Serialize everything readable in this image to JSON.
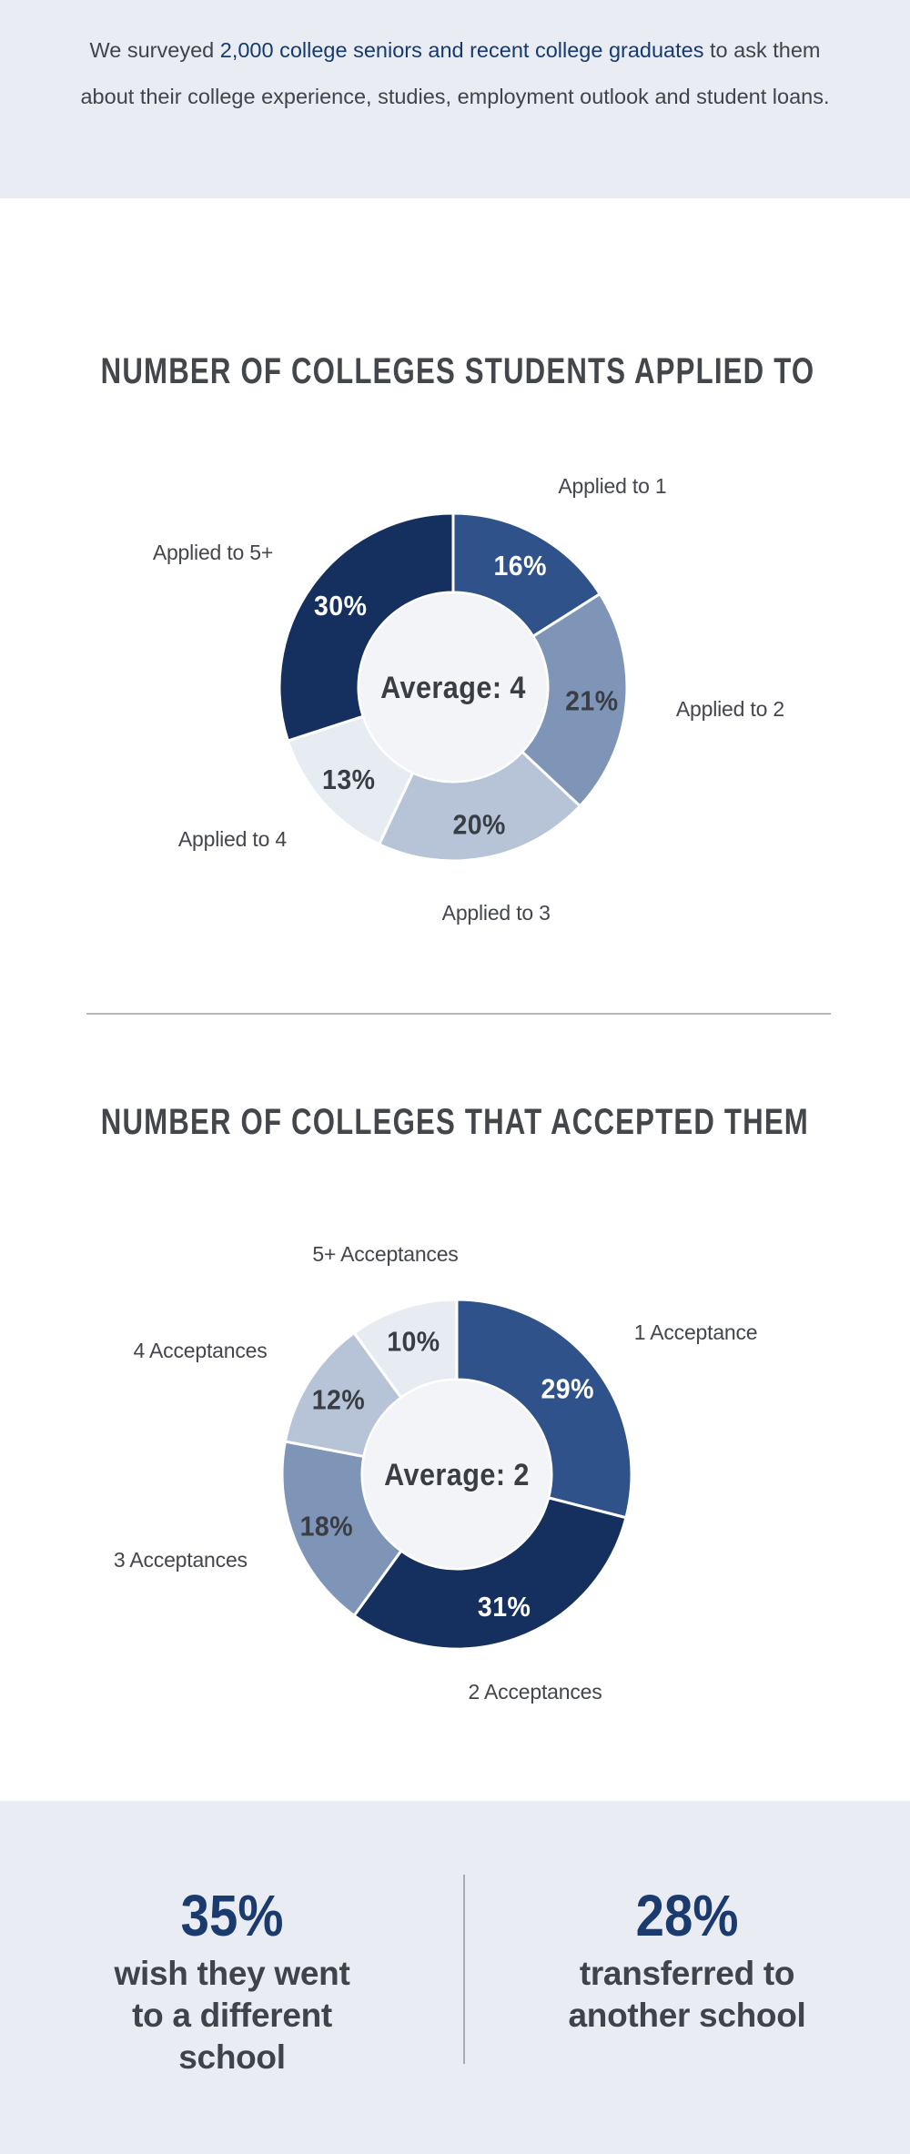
{
  "intro": {
    "prefix": "We surveyed ",
    "highlight": "2,000 college seniors and recent college graduates",
    "suffix": " to ask them about their college experience, studies, employment outlook and student loans."
  },
  "colors": {
    "navy_dark": "#15305e",
    "blue_medium": "#2f528b",
    "blue_steel": "#7e95b8",
    "blue_light": "#b7c4d8",
    "blue_faint": "#e7ebf2",
    "donut_center_fill": "#f3f4f7",
    "text_dark": "#3a3e44",
    "accent_navy": "#1b3a6e",
    "banner_bg": "#e9edf3",
    "section_bg": "#e9ecf2"
  },
  "chart_data": [
    {
      "type": "pie",
      "subtype": "donut",
      "title": "NUMBER OF COLLEGES STUDENTS APPLIED TO",
      "center_label": "Average: 4",
      "unit": "%",
      "start_angle": "top",
      "direction": "clockwise",
      "labels_position": "outside",
      "segments": [
        {
          "label": "Applied to 1",
          "value": 16,
          "color": "#2f528b",
          "text_color": "#ffffff"
        },
        {
          "label": "Applied to 2",
          "value": 21,
          "color": "#7e95b8",
          "text_color": "#3a3e44"
        },
        {
          "label": "Applied to 3",
          "value": 20,
          "color": "#b7c4d8",
          "text_color": "#3a3e44"
        },
        {
          "label": "Applied to 4",
          "value": 13,
          "color": "#e7ebf2",
          "text_color": "#3a3e44"
        },
        {
          "label": "Applied to 5+",
          "value": 30,
          "color": "#15305e",
          "text_color": "#ffffff"
        }
      ]
    },
    {
      "type": "pie",
      "subtype": "donut",
      "title": "NUMBER OF COLLEGES THAT ACCEPTED THEM",
      "center_label": "Average: 2",
      "unit": "%",
      "start_angle": "top",
      "direction": "clockwise",
      "labels_position": "outside",
      "segments": [
        {
          "label": "1 Acceptance",
          "value": 29,
          "color": "#2f528b",
          "text_color": "#ffffff"
        },
        {
          "label": "2 Acceptances",
          "value": 31,
          "color": "#15305e",
          "text_color": "#ffffff"
        },
        {
          "label": "3 Acceptances",
          "value": 18,
          "color": "#7e95b8",
          "text_color": "#3a3e44"
        },
        {
          "label": "4 Acceptances",
          "value": 12,
          "color": "#b7c4d8",
          "text_color": "#3a3e44"
        },
        {
          "label": "5+ Acceptances",
          "value": 10,
          "color": "#e7ebf2",
          "text_color": "#3a3e44"
        }
      ]
    }
  ],
  "stats": [
    {
      "value": "35%",
      "line1": "wish they went",
      "line2": "to a different",
      "line3": "school"
    },
    {
      "value": "28%",
      "line1": "transferred to",
      "line2": "another school"
    }
  ]
}
